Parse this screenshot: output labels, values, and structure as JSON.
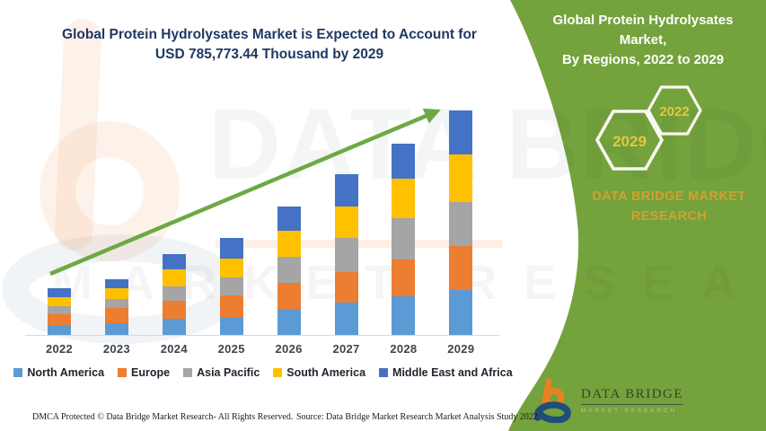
{
  "main_title": {
    "line1": "Global Protein Hydrolysates Market is Expected to Account for",
    "line2": "USD 785,773.44 Thousand by 2029",
    "color": "#1f3864"
  },
  "chart_data": {
    "type": "bar",
    "stacked": true,
    "title": "Global Protein Hydrolysates Market is Expected to Account for USD 785,773.44 Thousand by 2029",
    "units": "USD Thousand",
    "categories": [
      "2022",
      "2023",
      "2024",
      "2025",
      "2026",
      "2027",
      "2028",
      "2029"
    ],
    "series": [
      {
        "name": "North America",
        "color": "#5b9bd5",
        "values": [
          34600,
          40000,
          55600,
          60800,
          92200,
          113200,
          136200,
          157200
        ]
      },
      {
        "name": "Europe",
        "color": "#ed7d31",
        "values": [
          38700,
          54400,
          65000,
          76400,
          89000,
          106900,
          128900,
          155000
        ]
      },
      {
        "name": "Asia Pacific",
        "color": "#a5a5a5",
        "values": [
          27300,
          31400,
          48200,
          62900,
          91200,
          118400,
          143600,
          151900
        ]
      },
      {
        "name": "South America",
        "color": "#ffc000",
        "values": [
          31400,
          37700,
          61800,
          68100,
          92200,
          112100,
          139300,
          167600
        ]
      },
      {
        "name": "Middle East and Africa",
        "color": "#4472c4",
        "values": [
          31400,
          31400,
          52400,
          70200,
          83900,
          113200,
          122600,
          154073.44
        ]
      }
    ],
    "total_2029": 785773.44,
    "xlabel": "",
    "ylabel": "",
    "y_axis_shown": false,
    "grid": false,
    "legend_position": "bottom",
    "trend_arrow_color": "#6caa44"
  },
  "side_panel": {
    "title_line1": "Global Protein Hydrolysates Market,",
    "title_line2": "By Regions, 2022 to 2029",
    "hexagons": [
      {
        "label": "2029"
      },
      {
        "label": "2022"
      }
    ],
    "brand_text_line1": "DATA BRIDGE MARKET",
    "brand_text_line2": "RESEARCH",
    "logo": {
      "name": "DATA BRIDGE",
      "subname": "MARKET RESEARCH"
    },
    "colors": {
      "panel": "#74a23c",
      "gold": "#d2a12f",
      "year": "#e0ca3e",
      "hex_stroke": "#f7faf2"
    }
  },
  "watermark": {
    "line1": "DATA BRIDGE",
    "line2": "MARKET RESEARCH"
  },
  "footer": {
    "dmca": "DMCA Protected © Data Bridge Market Research- All Rights Reserved.",
    "source": "Source: Data Bridge Market Research Market Analysis Study 2022"
  }
}
